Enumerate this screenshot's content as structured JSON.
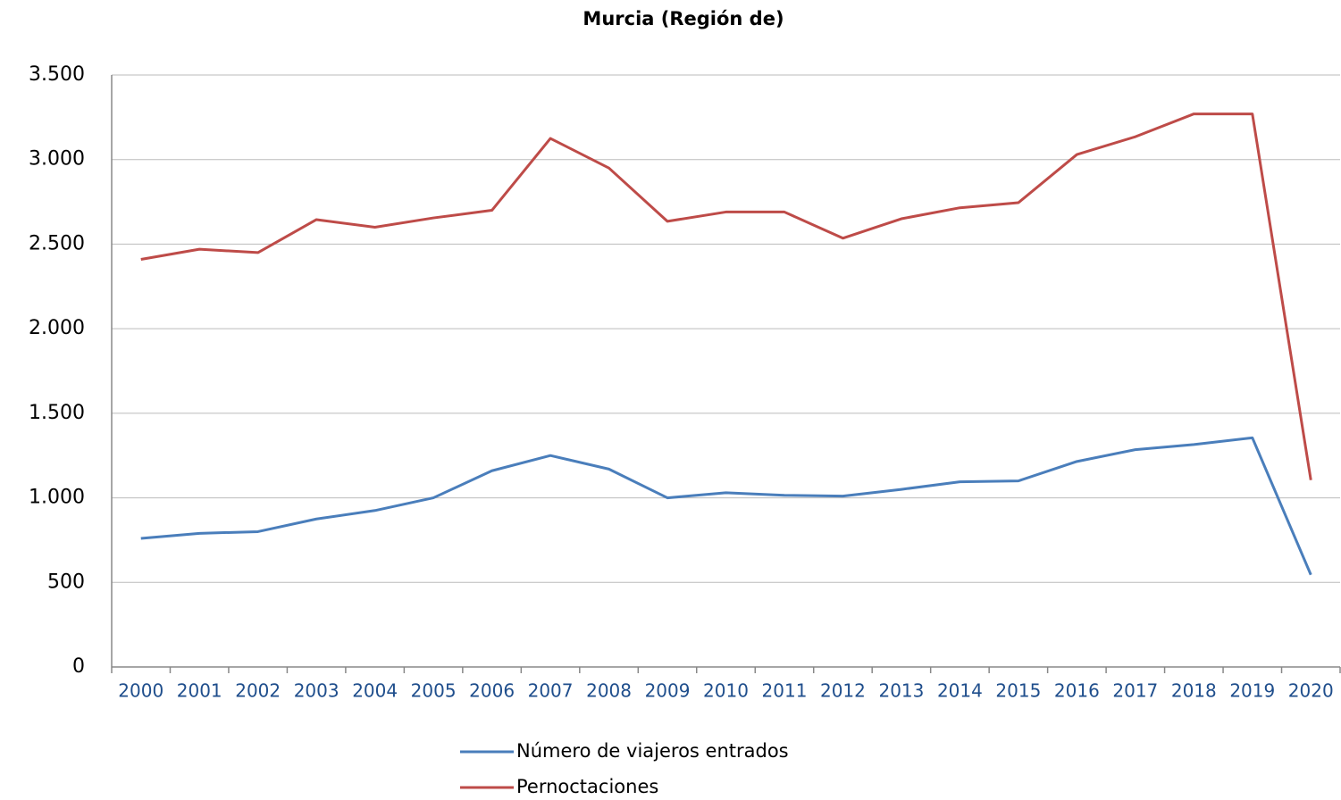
{
  "chart_data": {
    "type": "line",
    "title": "Murcia (Región de)",
    "categories": [
      "2000",
      "2001",
      "2002",
      "2003",
      "2004",
      "2005",
      "2006",
      "2007",
      "2008",
      "2009",
      "2010",
      "2011",
      "2012",
      "2013",
      "2014",
      "2015",
      "2016",
      "2017",
      "2018",
      "2019",
      "2020"
    ],
    "series": [
      {
        "name": "Número de viajeros entrados",
        "color": "#4a7ebb",
        "values": [
          760,
          790,
          800,
          875,
          925,
          1000,
          1160,
          1250,
          1170,
          1000,
          1030,
          1015,
          1010,
          1050,
          1095,
          1100,
          1215,
          1285,
          1315,
          1355,
          545
        ]
      },
      {
        "name": "Pernoctaciones",
        "color": "#be4b48",
        "values": [
          2410,
          2470,
          2450,
          2645,
          2600,
          2655,
          2700,
          3125,
          2950,
          2635,
          2690,
          2690,
          2535,
          2650,
          2715,
          2745,
          3030,
          3135,
          3270,
          3270,
          1105
        ]
      }
    ],
    "ylim": [
      0,
      3500
    ],
    "yticks": [
      0,
      500,
      {
        "value": 1000,
        "label": "1.000"
      },
      {
        "value": 1500,
        "label": "1.500"
      },
      {
        "value": 2000,
        "label": "2.000"
      },
      {
        "value": 2500,
        "label": "2.500"
      },
      {
        "value": 3000,
        "label": "3.000"
      },
      {
        "value": 3500,
        "label": "3.500"
      }
    ],
    "grid": true,
    "legend": "bottom"
  }
}
